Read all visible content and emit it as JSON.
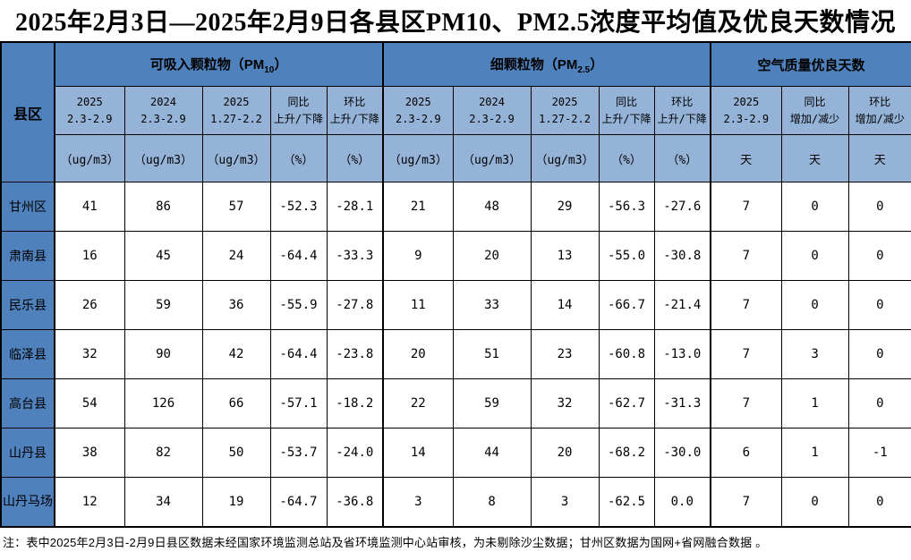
{
  "title": "2025年2月3日—2025年2月9日各县区PM10、PM2.5浓度平均值及优良天数情况",
  "table": {
    "corner_label": "县区",
    "groups": [
      {
        "label_main": "可吸入颗粒物（PM",
        "label_sub": "10",
        "label_end": "）"
      },
      {
        "label_main": "细颗粒物（PM",
        "label_sub": "2.5",
        "label_end": "）"
      },
      {
        "label_main": "空气质量优良天数",
        "label_sub": "",
        "label_end": ""
      }
    ],
    "subheaders": [
      {
        "line1": "2025",
        "line2": "2.3-2.9"
      },
      {
        "line1": "2024",
        "line2": "2.3-2.9"
      },
      {
        "line1": "2025",
        "line2": "1.27-2.2"
      },
      {
        "line1": "同比",
        "line2": "上升/下降"
      },
      {
        "line1": "环比",
        "line2": "上升/下降"
      },
      {
        "line1": "2025",
        "line2": "2.3-2.9"
      },
      {
        "line1": "2024",
        "line2": "2.3-2.9"
      },
      {
        "line1": "2025",
        "line2": "1.27-2.2"
      },
      {
        "line1": "同比",
        "line2": "上升/下降"
      },
      {
        "line1": "环比",
        "line2": "上升/下降"
      },
      {
        "line1": "2025",
        "line2": "2.3-2.9"
      },
      {
        "line1": "同比",
        "line2": "增加/减少"
      },
      {
        "line1": "环比",
        "line2": "增加/减少"
      }
    ],
    "units": [
      "（ug/m3）",
      "（ug/m3）",
      "（ug/m3）",
      "（%）",
      "（%）",
      "（ug/m3）",
      "（ug/m3）",
      "（ug/m3）",
      "（%）",
      "（%）",
      "天",
      "天",
      "天"
    ],
    "rows": [
      {
        "name": "甘州区",
        "values": [
          "41",
          "86",
          "57",
          "-52.3",
          "-28.1",
          "21",
          "48",
          "29",
          "-56.3",
          "-27.6",
          "7",
          "0",
          "0"
        ]
      },
      {
        "name": "肃南县",
        "values": [
          "16",
          "45",
          "24",
          "-64.4",
          "-33.3",
          "9",
          "20",
          "13",
          "-55.0",
          "-30.8",
          "7",
          "0",
          "0"
        ]
      },
      {
        "name": "民乐县",
        "values": [
          "26",
          "59",
          "36",
          "-55.9",
          "-27.8",
          "11",
          "33",
          "14",
          "-66.7",
          "-21.4",
          "7",
          "0",
          "0"
        ]
      },
      {
        "name": "临泽县",
        "values": [
          "32",
          "90",
          "42",
          "-64.4",
          "-23.8",
          "20",
          "51",
          "23",
          "-60.8",
          "-13.0",
          "7",
          "3",
          "0"
        ]
      },
      {
        "name": "高台县",
        "values": [
          "54",
          "126",
          "66",
          "-57.1",
          "-18.2",
          "22",
          "59",
          "32",
          "-62.7",
          "-31.3",
          "7",
          "1",
          "0"
        ]
      },
      {
        "name": "山丹县",
        "values": [
          "38",
          "82",
          "50",
          "-53.7",
          "-24.0",
          "14",
          "44",
          "20",
          "-68.2",
          "-30.0",
          "6",
          "1",
          "-1"
        ]
      },
      {
        "name": "山丹马场",
        "values": [
          "12",
          "34",
          "19",
          "-64.7",
          "-36.8",
          "3",
          "8",
          "3",
          "-62.5",
          "0.0",
          "7",
          "0",
          "0"
        ]
      }
    ],
    "note": "注：表中2025年2月3日-2月9日县区数据未经国家环境监测总站及省环境监测中心站审核，为未剔除沙尘数据；甘州区数据为国网+省网融合数据 。"
  },
  "colors": {
    "header_blue": "#4f81bd",
    "subheader_blue": "#95b3d7",
    "border": "#000000"
  }
}
